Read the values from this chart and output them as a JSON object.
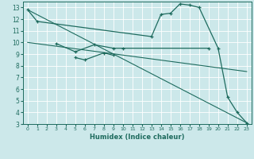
{
  "xlabel": "Humidex (Indice chaleur)",
  "bg_color": "#cce8ea",
  "grid_color": "#ffffff",
  "line_color": "#1e6b5e",
  "xlim": [
    -0.5,
    23.5
  ],
  "ylim": [
    3,
    13.5
  ],
  "yticks": [
    3,
    4,
    5,
    6,
    7,
    8,
    9,
    10,
    11,
    12,
    13
  ],
  "xticks": [
    0,
    1,
    2,
    3,
    4,
    5,
    6,
    7,
    8,
    9,
    10,
    11,
    12,
    13,
    14,
    15,
    16,
    17,
    18,
    19,
    20,
    21,
    22,
    23
  ],
  "straight_line1_x": [
    0,
    23
  ],
  "straight_line1_y": [
    12.8,
    3.1
  ],
  "straight_line2_x": [
    0,
    23
  ],
  "straight_line2_y": [
    10.0,
    7.5
  ],
  "curve_main_x": [
    0,
    1,
    13,
    14,
    15,
    16,
    17,
    18,
    20,
    21,
    22,
    23
  ],
  "curve_main_y": [
    12.8,
    11.8,
    10.5,
    12.4,
    12.5,
    13.3,
    13.2,
    13.0,
    9.5,
    5.3,
    4.0,
    3.1
  ],
  "curve2_x": [
    3,
    5,
    7,
    9,
    10,
    19
  ],
  "curve2_y": [
    9.9,
    9.2,
    9.8,
    9.5,
    9.5,
    9.5
  ],
  "curve3_x": [
    5,
    6,
    8,
    9
  ],
  "curve3_y": [
    8.7,
    8.5,
    9.1,
    8.9
  ]
}
